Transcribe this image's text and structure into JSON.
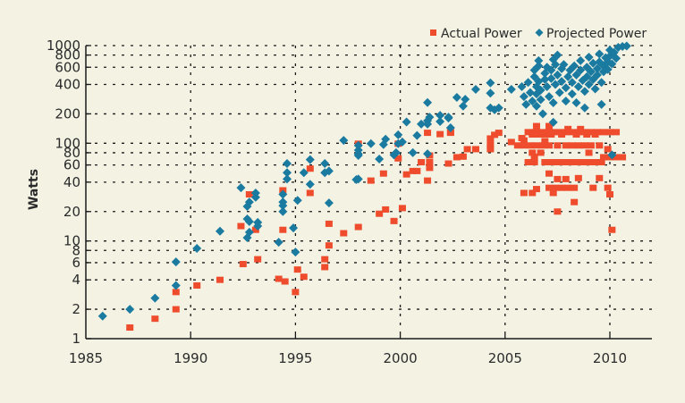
{
  "chart_data": {
    "type": "scatter",
    "title": "",
    "xlabel": "",
    "ylabel": "Watts",
    "xscale": "linear",
    "yscale": "log",
    "xlim": [
      1985,
      2011.5
    ],
    "ylim": [
      1,
      1000
    ],
    "grid": true,
    "legend_position": "top-right",
    "x_ticks": [
      1985,
      1990,
      1995,
      2000,
      2005,
      2010
    ],
    "x_tick_labels": [
      "1985",
      "1990",
      "1995",
      "2000",
      "2005",
      "2010"
    ],
    "y_ticks": [
      1,
      2,
      4,
      6,
      8,
      10,
      20,
      40,
      60,
      80,
      100,
      200,
      400,
      600,
      800,
      1000
    ],
    "y_tick_labels": [
      "1",
      "2",
      "4",
      "6",
      "8",
      "10",
      "20",
      "40",
      "60",
      "80",
      "100",
      "200",
      "400",
      "600",
      "800",
      "1000"
    ],
    "series": [
      {
        "name": "Actual Power",
        "marker": "square",
        "color": "#ee4c2c",
        "points": [
          [
            1987.1,
            1.3
          ],
          [
            1988.3,
            1.6
          ],
          [
            1989.3,
            3.0
          ],
          [
            1989.3,
            2.0
          ],
          [
            1990.3,
            3.5
          ],
          [
            1991.4,
            4.0
          ],
          [
            1992.5,
            5.8
          ],
          [
            1993.2,
            6.5
          ],
          [
            1992.8,
            30
          ],
          [
            1992.4,
            14.2
          ],
          [
            1993.1,
            13
          ],
          [
            1994.4,
            33
          ],
          [
            1994.4,
            13
          ],
          [
            1994.2,
            4.1
          ],
          [
            1994.5,
            3.85
          ],
          [
            1995.1,
            5.1
          ],
          [
            1995.4,
            4.3
          ],
          [
            1995.0,
            3.0
          ],
          [
            1995.7,
            55
          ],
          [
            1995.7,
            31
          ],
          [
            1996.6,
            15
          ],
          [
            1997.3,
            12
          ],
          [
            1996.6,
            9
          ],
          [
            1996.4,
            6.5
          ],
          [
            1996.4,
            5.4
          ],
          [
            1998.0,
            99
          ],
          [
            1998.0,
            13.9
          ],
          [
            1998.6,
            41.5
          ],
          [
            1999.2,
            49
          ],
          [
            1999.0,
            19
          ],
          [
            1999.3,
            21
          ],
          [
            1999.9,
            99
          ],
          [
            1999.9,
            70
          ],
          [
            1999.7,
            16
          ],
          [
            2000.1,
            21.7
          ],
          [
            2000.3,
            48
          ],
          [
            2000.6,
            52
          ],
          [
            2000.8,
            52
          ],
          [
            2001.0,
            64
          ],
          [
            2001.4,
            75
          ],
          [
            2001.4,
            64
          ],
          [
            2001.4,
            56
          ],
          [
            2001.3,
            128
          ],
          [
            2001.3,
            41.5
          ],
          [
            2001.9,
            124
          ],
          [
            2002.4,
            130
          ],
          [
            2002.3,
            62
          ],
          [
            2002.7,
            72
          ],
          [
            2002.4,
            128
          ],
          [
            2003.0,
            73
          ],
          [
            2003.2,
            87
          ],
          [
            2003.6,
            87
          ],
          [
            2004.3,
            112
          ],
          [
            2004.3,
            97
          ],
          [
            2004.3,
            87
          ],
          [
            2004.5,
            122
          ],
          [
            2004.7,
            128
          ],
          [
            2005.3,
            103
          ],
          [
            2005.8,
            113
          ],
          [
            2005.9,
            107
          ],
          [
            2006.5,
            150
          ],
          [
            2007.1,
            150
          ],
          [
            2006.1,
            130
          ],
          [
            2006.4,
            130
          ],
          [
            2006.7,
            130
          ],
          [
            2007.0,
            130
          ],
          [
            2007.3,
            130
          ],
          [
            2007.6,
            130
          ],
          [
            2007.9,
            130
          ],
          [
            2008.2,
            130
          ],
          [
            2008.5,
            130
          ],
          [
            2008.8,
            130
          ],
          [
            2009.1,
            130
          ],
          [
            2009.4,
            130
          ],
          [
            2009.7,
            130
          ],
          [
            2010.0,
            130
          ],
          [
            2010.3,
            130
          ],
          [
            2006.3,
            123
          ],
          [
            2006.6,
            123
          ],
          [
            2006.9,
            123
          ],
          [
            2007.2,
            123
          ],
          [
            2007.7,
            123
          ],
          [
            2008.4,
            123
          ],
          [
            2008.9,
            123
          ],
          [
            2009.3,
            123
          ],
          [
            2008.0,
            140
          ],
          [
            2008.6,
            140
          ],
          [
            2006.9,
            105
          ],
          [
            2005.6,
            95
          ],
          [
            2005.9,
            95
          ],
          [
            2006.2,
            95
          ],
          [
            2006.5,
            95
          ],
          [
            2006.8,
            95
          ],
          [
            2007.1,
            95
          ],
          [
            2007.5,
            95
          ],
          [
            2007.9,
            95
          ],
          [
            2008.2,
            95
          ],
          [
            2008.5,
            95
          ],
          [
            2008.8,
            95
          ],
          [
            2009.1,
            95
          ],
          [
            2009.5,
            95
          ],
          [
            2009.9,
            87
          ],
          [
            2006.3,
            80
          ],
          [
            2006.7,
            80
          ],
          [
            2006.4,
            73
          ],
          [
            2009.0,
            80
          ],
          [
            2009.7,
            72
          ],
          [
            2010.0,
            72
          ],
          [
            2010.3,
            72
          ],
          [
            2010.6,
            72
          ],
          [
            2006.1,
            64
          ],
          [
            2006.4,
            64
          ],
          [
            2006.9,
            64
          ],
          [
            2007.2,
            64
          ],
          [
            2007.5,
            64
          ],
          [
            2007.8,
            64
          ],
          [
            2008.1,
            64
          ],
          [
            2008.4,
            64
          ],
          [
            2008.7,
            64
          ],
          [
            2009.0,
            64
          ],
          [
            2009.3,
            64
          ],
          [
            2009.6,
            64
          ],
          [
            2007.1,
            49
          ],
          [
            2007.5,
            43
          ],
          [
            2007.9,
            43
          ],
          [
            2008.5,
            44
          ],
          [
            2009.5,
            44
          ],
          [
            2007.1,
            35
          ],
          [
            2007.4,
            35
          ],
          [
            2007.7,
            35
          ],
          [
            2008.0,
            35
          ],
          [
            2008.3,
            35
          ],
          [
            2006.5,
            34
          ],
          [
            2009.2,
            35
          ],
          [
            2009.9,
            35
          ],
          [
            2010.0,
            30
          ],
          [
            2005.9,
            31
          ],
          [
            2006.3,
            31
          ],
          [
            2007.3,
            31
          ],
          [
            2008.3,
            25
          ],
          [
            2007.5,
            20
          ],
          [
            2010.1,
            13
          ]
        ]
      },
      {
        "name": "Projected Power",
        "marker": "diamond",
        "color": "#1a7aa0",
        "points": [
          [
            1985.8,
            1.7
          ],
          [
            1987.1,
            2.0
          ],
          [
            1988.3,
            2.6
          ],
          [
            1989.3,
            6.1
          ],
          [
            1989.3,
            3.5
          ],
          [
            1990.3,
            8.4
          ],
          [
            1991.4,
            12.6
          ],
          [
            1992.4,
            35
          ],
          [
            1993.1,
            31
          ],
          [
            1993.1,
            28
          ],
          [
            1992.8,
            25
          ],
          [
            1992.7,
            22.6
          ],
          [
            1992.7,
            16.8
          ],
          [
            1992.8,
            15.8
          ],
          [
            1993.2,
            15.5
          ],
          [
            1993.2,
            14.2
          ],
          [
            1992.8,
            12.3
          ],
          [
            1992.7,
            10.8
          ],
          [
            1994.6,
            62
          ],
          [
            1994.6,
            50
          ],
          [
            1994.6,
            43
          ],
          [
            1994.4,
            30
          ],
          [
            1994.4,
            25
          ],
          [
            1994.4,
            23
          ],
          [
            1994.4,
            20
          ],
          [
            1994.2,
            9.7
          ],
          [
            1994.9,
            13.6
          ],
          [
            1995.0,
            7.7
          ],
          [
            1995.1,
            26
          ],
          [
            1995.4,
            50
          ],
          [
            1995.7,
            68
          ],
          [
            1995.7,
            38
          ],
          [
            1996.6,
            24.5
          ],
          [
            1996.4,
            62
          ],
          [
            1996.4,
            50
          ],
          [
            1996.6,
            52
          ],
          [
            1997.3,
            107
          ],
          [
            1997.9,
            42.5
          ],
          [
            1998.0,
            95
          ],
          [
            1998.0,
            85
          ],
          [
            1998.0,
            78
          ],
          [
            1998.0,
            75
          ],
          [
            1998.0,
            43
          ],
          [
            1998.6,
            99
          ],
          [
            1999.0,
            69
          ],
          [
            1999.2,
            97
          ],
          [
            1999.3,
            110
          ],
          [
            1999.9,
            122
          ],
          [
            1999.9,
            99
          ],
          [
            1999.8,
            80
          ],
          [
            1999.7,
            76
          ],
          [
            2000.1,
            103
          ],
          [
            2000.3,
            165
          ],
          [
            2000.6,
            80
          ],
          [
            2000.8,
            120
          ],
          [
            2001.0,
            157
          ],
          [
            2001.3,
            261
          ],
          [
            2001.4,
            185
          ],
          [
            2001.3,
            170
          ],
          [
            2001.3,
            157
          ],
          [
            2001.3,
            78
          ],
          [
            2001.9,
            193
          ],
          [
            2001.9,
            167
          ],
          [
            2002.3,
            181
          ],
          [
            2002.4,
            144
          ],
          [
            2002.3,
            185
          ],
          [
            2002.7,
            295
          ],
          [
            2003.0,
            240
          ],
          [
            2003.1,
            282
          ],
          [
            2003.6,
            356
          ],
          [
            2004.3,
            415
          ],
          [
            2004.3,
            326
          ],
          [
            2004.3,
            230
          ],
          [
            2004.5,
            220
          ],
          [
            2004.7,
            230
          ],
          [
            2005.3,
            356
          ],
          [
            2005.8,
            380
          ],
          [
            2005.9,
            300
          ],
          [
            2006.0,
            250
          ],
          [
            2006.1,
            420
          ],
          [
            2006.2,
            330
          ],
          [
            2006.3,
            270
          ],
          [
            2006.4,
            560
          ],
          [
            2006.4,
            480
          ],
          [
            2006.5,
            380
          ],
          [
            2006.5,
            320
          ],
          [
            2006.5,
            240
          ],
          [
            2006.6,
            700
          ],
          [
            2006.6,
            620
          ],
          [
            2006.6,
            430
          ],
          [
            2006.7,
            350
          ],
          [
            2006.7,
            280
          ],
          [
            2006.8,
            200
          ],
          [
            2006.9,
            520
          ],
          [
            2006.9,
            450
          ],
          [
            2007.0,
            600
          ],
          [
            2007.0,
            380
          ],
          [
            2007.1,
            300
          ],
          [
            2007.2,
            560
          ],
          [
            2007.2,
            460
          ],
          [
            2007.3,
            720
          ],
          [
            2007.3,
            260
          ],
          [
            2007.4,
            640
          ],
          [
            2007.4,
            400
          ],
          [
            2007.5,
            800
          ],
          [
            2007.5,
            500
          ],
          [
            2007.6,
            330
          ],
          [
            2007.7,
            580
          ],
          [
            2007.7,
            430
          ],
          [
            2007.8,
            640
          ],
          [
            2007.9,
            370
          ],
          [
            2007.9,
            270
          ],
          [
            2008.0,
            480
          ],
          [
            2008.1,
            560
          ],
          [
            2008.2,
            420
          ],
          [
            2008.2,
            320
          ],
          [
            2008.3,
            620
          ],
          [
            2008.4,
            500
          ],
          [
            2008.4,
            260
          ],
          [
            2008.5,
            380
          ],
          [
            2008.6,
            700
          ],
          [
            2008.6,
            560
          ],
          [
            2008.7,
            440
          ],
          [
            2008.8,
            340
          ],
          [
            2008.8,
            230
          ],
          [
            2008.9,
            600
          ],
          [
            2008.9,
            480
          ],
          [
            2009.0,
            760
          ],
          [
            2009.0,
            400
          ],
          [
            2009.1,
            540
          ],
          [
            2009.2,
            660
          ],
          [
            2009.2,
            450
          ],
          [
            2009.3,
            360
          ],
          [
            2009.4,
            580
          ],
          [
            2009.4,
            500
          ],
          [
            2009.5,
            820
          ],
          [
            2009.5,
            680
          ],
          [
            2009.6,
            420
          ],
          [
            2009.6,
            250
          ],
          [
            2009.7,
            620
          ],
          [
            2009.7,
            540
          ],
          [
            2009.8,
            750
          ],
          [
            2009.9,
            680
          ],
          [
            2009.9,
            570
          ],
          [
            2010.0,
            900
          ],
          [
            2010.0,
            780
          ],
          [
            2010.1,
            650
          ],
          [
            2010.2,
            850
          ],
          [
            2010.3,
            740
          ],
          [
            2010.4,
            960
          ],
          [
            2010.6,
            980
          ],
          [
            2010.8,
            990
          ],
          [
            2007.3,
            164
          ],
          [
            2010.1,
            76
          ]
        ]
      }
    ]
  }
}
